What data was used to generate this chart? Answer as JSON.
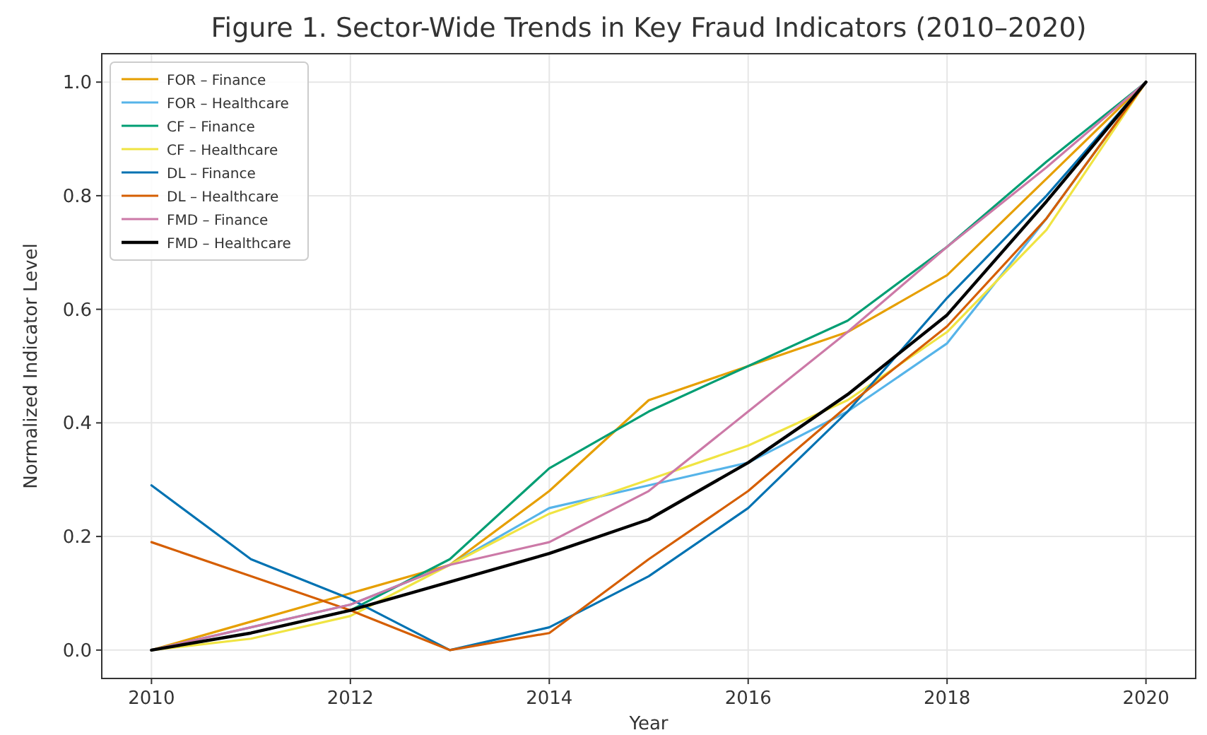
{
  "chart_data": {
    "type": "line",
    "title": "Figure 1. Sector-Wide Trends in Key Fraud Indicators (2010–2020)",
    "xlabel": "Year",
    "ylabel": "Normalized Indicator Level",
    "x": [
      2010,
      2011,
      2012,
      2013,
      2014,
      2015,
      2016,
      2017,
      2018,
      2019,
      2020
    ],
    "xlim": [
      2009.5,
      2020.5
    ],
    "xticks": [
      2010,
      2012,
      2014,
      2016,
      2018,
      2020
    ],
    "ylim": [
      -0.05,
      1.05
    ],
    "yticks": [
      {
        "value": 0,
        "label": "0.0"
      },
      {
        "value": 0.2,
        "label": "0.2"
      },
      {
        "value": 0.4,
        "label": "0.4"
      },
      {
        "value": 0.6,
        "label": "0.6"
      },
      {
        "value": 0.8,
        "label": "0.8"
      },
      {
        "value": 1,
        "label": "1.0"
      }
    ],
    "grid": true,
    "legend": "top left",
    "line_style": "solid",
    "marker": "none",
    "series": [
      {
        "name": "FOR – Finance",
        "color": "#e69f00",
        "values": [
          0,
          0.05,
          0.1,
          0.15,
          0.28,
          0.44,
          0.5,
          0.56,
          0.66,
          0.83,
          1
        ]
      },
      {
        "name": "FOR – Healthcare",
        "color": "#56b4e9",
        "values": [
          0,
          0.04,
          0.08,
          0.15,
          0.25,
          0.29,
          0.33,
          0.42,
          0.54,
          0.76,
          1
        ]
      },
      {
        "name": "CF – Finance",
        "color": "#009e73",
        "values": [
          0,
          0.03,
          0.07,
          0.16,
          0.32,
          0.42,
          0.5,
          0.58,
          0.71,
          0.86,
          1
        ]
      },
      {
        "name": "CF – Healthcare",
        "color": "#f0e442",
        "values": [
          0,
          0.02,
          0.06,
          0.15,
          0.24,
          0.3,
          0.36,
          0.44,
          0.56,
          0.74,
          1
        ]
      },
      {
        "name": "DL – Finance",
        "color": "#0072b2",
        "values": [
          0.29,
          0.16,
          0.09,
          0,
          0.04,
          0.13,
          0.25,
          0.42,
          0.62,
          0.8,
          1
        ]
      },
      {
        "name": "DL – Healthcare",
        "color": "#d55e00",
        "values": [
          0.19,
          0.13,
          0.07,
          0,
          0.03,
          0.16,
          0.28,
          0.43,
          0.57,
          0.76,
          1
        ]
      },
      {
        "name": "FMD – Finance",
        "color": "#cc79a7",
        "values": [
          0,
          0.04,
          0.08,
          0.15,
          0.19,
          0.28,
          0.42,
          0.56,
          0.71,
          0.85,
          1
        ]
      },
      {
        "name": "FMD – Healthcare",
        "color": "#000000",
        "values": [
          0,
          0.03,
          0.07,
          0.12,
          0.17,
          0.23,
          0.33,
          0.45,
          0.59,
          0.79,
          1
        ]
      }
    ]
  }
}
